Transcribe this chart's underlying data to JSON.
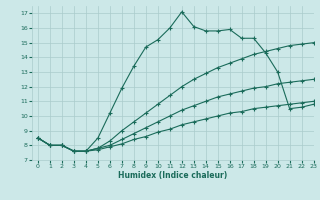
{
  "xlabel": "Humidex (Indice chaleur)",
  "bg_color": "#cce8e8",
  "grid_color": "#aacccc",
  "line_color": "#1a6b5a",
  "xlim": [
    -0.5,
    23
  ],
  "ylim": [
    7,
    17.5
  ],
  "xticks": [
    0,
    1,
    2,
    3,
    4,
    5,
    6,
    7,
    8,
    9,
    10,
    11,
    12,
    13,
    14,
    15,
    16,
    17,
    18,
    19,
    20,
    21,
    22,
    23
  ],
  "yticks": [
    7,
    8,
    9,
    10,
    11,
    12,
    13,
    14,
    15,
    16,
    17
  ],
  "line_main_x": [
    0,
    1,
    2,
    3,
    4,
    5,
    6,
    7,
    8,
    9,
    10,
    11,
    12,
    13,
    14,
    15,
    16,
    17,
    18,
    19,
    20,
    21,
    22,
    23
  ],
  "line_main_y": [
    8.5,
    8.0,
    8.0,
    7.6,
    7.6,
    8.5,
    10.2,
    11.9,
    13.4,
    14.7,
    15.2,
    16.0,
    17.1,
    16.1,
    15.8,
    15.8,
    15.9,
    15.3,
    15.3,
    14.3,
    13.0,
    10.5,
    10.6,
    10.8
  ],
  "line2_x": [
    0,
    1,
    2,
    3,
    4,
    5,
    6,
    7,
    8,
    9,
    10,
    11,
    12,
    13,
    14,
    15,
    16,
    17,
    18,
    19,
    20,
    21,
    22,
    23
  ],
  "line2_y": [
    8.5,
    8.0,
    8.0,
    7.6,
    7.6,
    7.8,
    8.3,
    9.0,
    9.6,
    10.2,
    10.8,
    11.4,
    12.0,
    12.5,
    12.9,
    13.3,
    13.6,
    13.9,
    14.2,
    14.4,
    14.6,
    14.8,
    14.9,
    15.0
  ],
  "line3_x": [
    0,
    1,
    2,
    3,
    4,
    5,
    6,
    7,
    8,
    9,
    10,
    11,
    12,
    13,
    14,
    15,
    16,
    17,
    18,
    19,
    20,
    21,
    22,
    23
  ],
  "line3_y": [
    8.5,
    8.0,
    8.0,
    7.6,
    7.6,
    7.8,
    8.0,
    8.4,
    8.8,
    9.2,
    9.6,
    10.0,
    10.4,
    10.7,
    11.0,
    11.3,
    11.5,
    11.7,
    11.9,
    12.0,
    12.2,
    12.3,
    12.4,
    12.5
  ],
  "line4_x": [
    0,
    1,
    2,
    3,
    4,
    5,
    6,
    7,
    8,
    9,
    10,
    11,
    12,
    13,
    14,
    15,
    16,
    17,
    18,
    19,
    20,
    21,
    22,
    23
  ],
  "line4_y": [
    8.5,
    8.0,
    8.0,
    7.6,
    7.6,
    7.7,
    7.9,
    8.1,
    8.4,
    8.6,
    8.9,
    9.1,
    9.4,
    9.6,
    9.8,
    10.0,
    10.2,
    10.3,
    10.5,
    10.6,
    10.7,
    10.8,
    10.9,
    11.0
  ]
}
